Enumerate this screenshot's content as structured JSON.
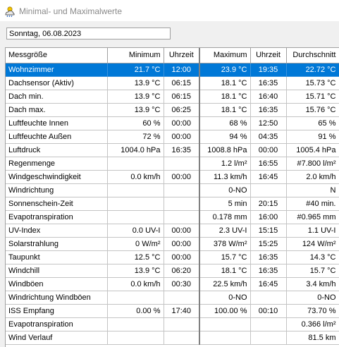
{
  "window": {
    "title": "Minimal- und Maximalwerte"
  },
  "date_field": {
    "value": "Sonntag, 06.08.2023"
  },
  "table": {
    "columns": [
      "Messgröße",
      "Minimum",
      "Uhrzeit",
      "Maximum",
      "Uhrzeit",
      "Durchschnitt"
    ],
    "rows": [
      [
        "Wohnzimmer",
        "21.7 °C",
        "12:00",
        "23.9 °C",
        "19:35",
        "22.72 °C"
      ],
      [
        "Dachsensor (Aktiv)",
        "13.9 °C",
        "06:15",
        "18.1 °C",
        "16:35",
        "15.73 °C"
      ],
      [
        "Dach min.",
        "13.9 °C",
        "06:15",
        "18.1 °C",
        "16:40",
        "15.71 °C"
      ],
      [
        "Dach max.",
        "13.9 °C",
        "06:25",
        "18.1 °C",
        "16:35",
        "15.76 °C"
      ],
      [
        "Luftfeuchte Innen",
        "60 %",
        "00:00",
        "68 %",
        "12:50",
        "65 %"
      ],
      [
        "Luftfeuchte Außen",
        "72 %",
        "00:00",
        "94 %",
        "04:35",
        "91 %"
      ],
      [
        "Luftdruck",
        "1004.0 hPa",
        "16:35",
        "1008.8 hPa",
        "00:00",
        "1005.4 hPa"
      ],
      [
        "Regenmenge",
        "",
        "",
        "1.2 l/m²",
        "16:55",
        "#7.800 l/m²"
      ],
      [
        "Windgeschwindigkeit",
        "0.0 km/h",
        "00:00",
        "11.3 km/h",
        "16:45",
        "2.0 km/h"
      ],
      [
        "Windrichtung",
        "",
        "",
        "0-NO",
        "",
        "N"
      ],
      [
        "Sonnenschein-Zeit",
        "",
        "",
        "5 min",
        "20:15",
        "#40 min."
      ],
      [
        "Evapotranspiration",
        "",
        "",
        "0.178 mm",
        "16:00",
        "#0.965 mm"
      ],
      [
        "UV-Index",
        "0.0 UV-I",
        "00:00",
        "2.3 UV-I",
        "15:15",
        "1.1 UV-I"
      ],
      [
        "Solarstrahlung",
        "0 W/m²",
        "00:00",
        "378 W/m²",
        "15:25",
        "124 W/m²"
      ],
      [
        "Taupunkt",
        "12.5 °C",
        "00:00",
        "15.7 °C",
        "16:35",
        "14.3 °C"
      ],
      [
        "Windchill",
        "13.9 °C",
        "06:20",
        "18.1 °C",
        "16:35",
        "15.7 °C"
      ],
      [
        "Windböen",
        "0.0 km/h",
        "00:30",
        "22.5 km/h",
        "16:45",
        "3.4 km/h"
      ],
      [
        "Windrichtung Windböen",
        "",
        "",
        "0-NO",
        "",
        "0-NO"
      ],
      [
        "ISS Empfang",
        "0.00 %",
        "17:40",
        "100.00 %",
        "00:10",
        "73.70 %"
      ],
      [
        "Evapotranspiration",
        "",
        "",
        "",
        "",
        "0.366 l/m²"
      ],
      [
        "Wind Verlauf",
        "",
        "",
        "",
        "",
        "81.5 km"
      ]
    ],
    "selected_row": 0
  }
}
